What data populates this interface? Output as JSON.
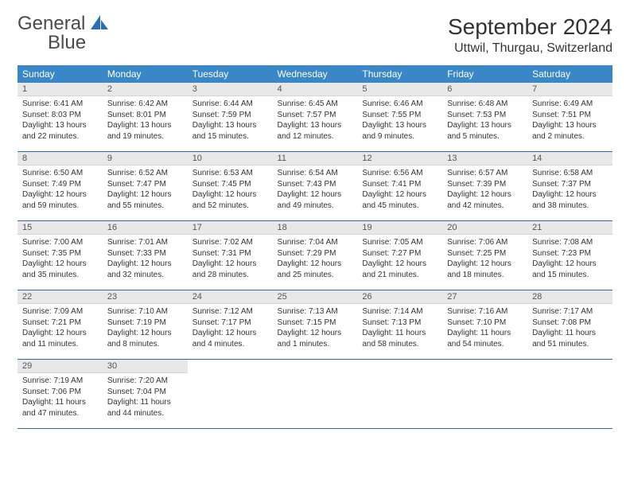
{
  "logo": {
    "text1": "General",
    "text2": "Blue"
  },
  "title": "September 2024",
  "location": "Uttwil, Thurgau, Switzerland",
  "colors": {
    "header_bg": "#3a87c8",
    "header_text": "#ffffff",
    "daynum_bg": "#e8e8e8",
    "border": "#2e6aa8",
    "logo_blue": "#2a6db8"
  },
  "weekdays": [
    "Sunday",
    "Monday",
    "Tuesday",
    "Wednesday",
    "Thursday",
    "Friday",
    "Saturday"
  ],
  "days": [
    {
      "n": "1",
      "sr": "6:41 AM",
      "ss": "8:03 PM",
      "dlh": "13",
      "dlm": "22"
    },
    {
      "n": "2",
      "sr": "6:42 AM",
      "ss": "8:01 PM",
      "dlh": "13",
      "dlm": "19"
    },
    {
      "n": "3",
      "sr": "6:44 AM",
      "ss": "7:59 PM",
      "dlh": "13",
      "dlm": "15"
    },
    {
      "n": "4",
      "sr": "6:45 AM",
      "ss": "7:57 PM",
      "dlh": "13",
      "dlm": "12"
    },
    {
      "n": "5",
      "sr": "6:46 AM",
      "ss": "7:55 PM",
      "dlh": "13",
      "dlm": "9"
    },
    {
      "n": "6",
      "sr": "6:48 AM",
      "ss": "7:53 PM",
      "dlh": "13",
      "dlm": "5"
    },
    {
      "n": "7",
      "sr": "6:49 AM",
      "ss": "7:51 PM",
      "dlh": "13",
      "dlm": "2"
    },
    {
      "n": "8",
      "sr": "6:50 AM",
      "ss": "7:49 PM",
      "dlh": "12",
      "dlm": "59"
    },
    {
      "n": "9",
      "sr": "6:52 AM",
      "ss": "7:47 PM",
      "dlh": "12",
      "dlm": "55"
    },
    {
      "n": "10",
      "sr": "6:53 AM",
      "ss": "7:45 PM",
      "dlh": "12",
      "dlm": "52"
    },
    {
      "n": "11",
      "sr": "6:54 AM",
      "ss": "7:43 PM",
      "dlh": "12",
      "dlm": "49"
    },
    {
      "n": "12",
      "sr": "6:56 AM",
      "ss": "7:41 PM",
      "dlh": "12",
      "dlm": "45"
    },
    {
      "n": "13",
      "sr": "6:57 AM",
      "ss": "7:39 PM",
      "dlh": "12",
      "dlm": "42"
    },
    {
      "n": "14",
      "sr": "6:58 AM",
      "ss": "7:37 PM",
      "dlh": "12",
      "dlm": "38"
    },
    {
      "n": "15",
      "sr": "7:00 AM",
      "ss": "7:35 PM",
      "dlh": "12",
      "dlm": "35"
    },
    {
      "n": "16",
      "sr": "7:01 AM",
      "ss": "7:33 PM",
      "dlh": "12",
      "dlm": "32"
    },
    {
      "n": "17",
      "sr": "7:02 AM",
      "ss": "7:31 PM",
      "dlh": "12",
      "dlm": "28"
    },
    {
      "n": "18",
      "sr": "7:04 AM",
      "ss": "7:29 PM",
      "dlh": "12",
      "dlm": "25"
    },
    {
      "n": "19",
      "sr": "7:05 AM",
      "ss": "7:27 PM",
      "dlh": "12",
      "dlm": "21"
    },
    {
      "n": "20",
      "sr": "7:06 AM",
      "ss": "7:25 PM",
      "dlh": "12",
      "dlm": "18"
    },
    {
      "n": "21",
      "sr": "7:08 AM",
      "ss": "7:23 PM",
      "dlh": "12",
      "dlm": "15"
    },
    {
      "n": "22",
      "sr": "7:09 AM",
      "ss": "7:21 PM",
      "dlh": "12",
      "dlm": "11"
    },
    {
      "n": "23",
      "sr": "7:10 AM",
      "ss": "7:19 PM",
      "dlh": "12",
      "dlm": "8"
    },
    {
      "n": "24",
      "sr": "7:12 AM",
      "ss": "7:17 PM",
      "dlh": "12",
      "dlm": "4"
    },
    {
      "n": "25",
      "sr": "7:13 AM",
      "ss": "7:15 PM",
      "dlh": "12",
      "dlm": "1"
    },
    {
      "n": "26",
      "sr": "7:14 AM",
      "ss": "7:13 PM",
      "dlh": "11",
      "dlm": "58"
    },
    {
      "n": "27",
      "sr": "7:16 AM",
      "ss": "7:10 PM",
      "dlh": "11",
      "dlm": "54"
    },
    {
      "n": "28",
      "sr": "7:17 AM",
      "ss": "7:08 PM",
      "dlh": "11",
      "dlm": "51"
    },
    {
      "n": "29",
      "sr": "7:19 AM",
      "ss": "7:06 PM",
      "dlh": "11",
      "dlm": "47"
    },
    {
      "n": "30",
      "sr": "7:20 AM",
      "ss": "7:04 PM",
      "dlh": "11",
      "dlm": "44"
    }
  ],
  "labels": {
    "sunrise": "Sunrise: ",
    "sunset": "Sunset: ",
    "daylight_pre": "Daylight: ",
    "hours": " hours",
    "and": "and ",
    "minutes": " minutes."
  }
}
